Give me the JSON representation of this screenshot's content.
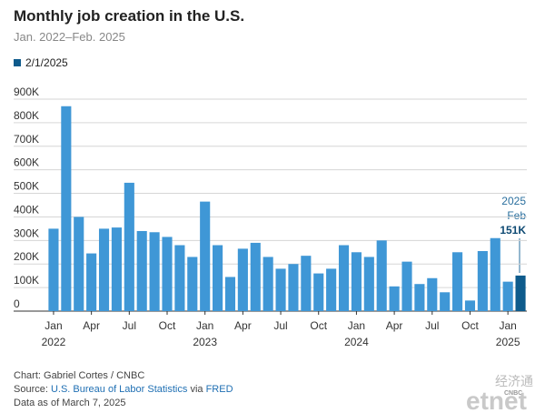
{
  "chart_data": {
    "type": "bar",
    "title": "Monthly job creation in the U.S.",
    "subtitle": "Jan. 2022–Feb. 2025",
    "legend": "2/1/2025",
    "categories": [
      "Jan",
      null,
      null,
      "Apr",
      null,
      null,
      "Jul",
      null,
      null,
      "Oct",
      null,
      null,
      "Jan",
      null,
      null,
      "Apr",
      null,
      null,
      "Jul",
      null,
      null,
      "Oct",
      null,
      null,
      "Jan",
      null,
      null,
      "Apr",
      null,
      null,
      "Jul",
      null,
      null,
      "Oct",
      null,
      null,
      "Jan",
      null
    ],
    "years": [
      "2022",
      "2023",
      "2024",
      "2025"
    ],
    "values": [
      350,
      870,
      400,
      245,
      350,
      355,
      545,
      340,
      335,
      315,
      280,
      230,
      465,
      280,
      145,
      265,
      290,
      230,
      180,
      200,
      235,
      160,
      180,
      280,
      250,
      230,
      300,
      105,
      210,
      115,
      140,
      80,
      250,
      45,
      255,
      310,
      125,
      151
    ],
    "value_labels": [
      null,
      null,
      null,
      null,
      null,
      null,
      null,
      null,
      null,
      null,
      null,
      null,
      null,
      null,
      null,
      null,
      null,
      null,
      null,
      null,
      null,
      null,
      null,
      null,
      null,
      null,
      null,
      null,
      null,
      null,
      null,
      null,
      null,
      null,
      null,
      null,
      null,
      "151K"
    ],
    "annotation": [
      "2025",
      "Feb"
    ],
    "color": "#3f97d6",
    "highlight_color": "#0e5b8c",
    "ylim": [
      0,
      900
    ],
    "yticks": [
      {
        "value": 0,
        "label": "0"
      },
      {
        "value": 100,
        "label": "100K"
      },
      {
        "value": 200,
        "label": "200K"
      },
      {
        "value": 300,
        "label": "300K"
      },
      {
        "value": 400,
        "label": "400K"
      },
      {
        "value": 500,
        "label": "500K"
      },
      {
        "value": 600,
        "label": "600K"
      },
      {
        "value": 700,
        "label": "700K"
      },
      {
        "value": 800,
        "label": "800K"
      },
      {
        "value": 900,
        "label": "900K"
      }
    ],
    "grid": true
  },
  "footer": {
    "credit": "Chart: Gabriel Cortes / CNBC",
    "source": [
      "Source: ",
      "U.S. Bureau of Labor Statistics",
      " via ",
      "FRED"
    ],
    "date": "Data as of March 7, 2025"
  },
  "watermark": {
    "chinese": "经济通",
    "cnbc": "CNBC",
    "brand": "etnet"
  }
}
